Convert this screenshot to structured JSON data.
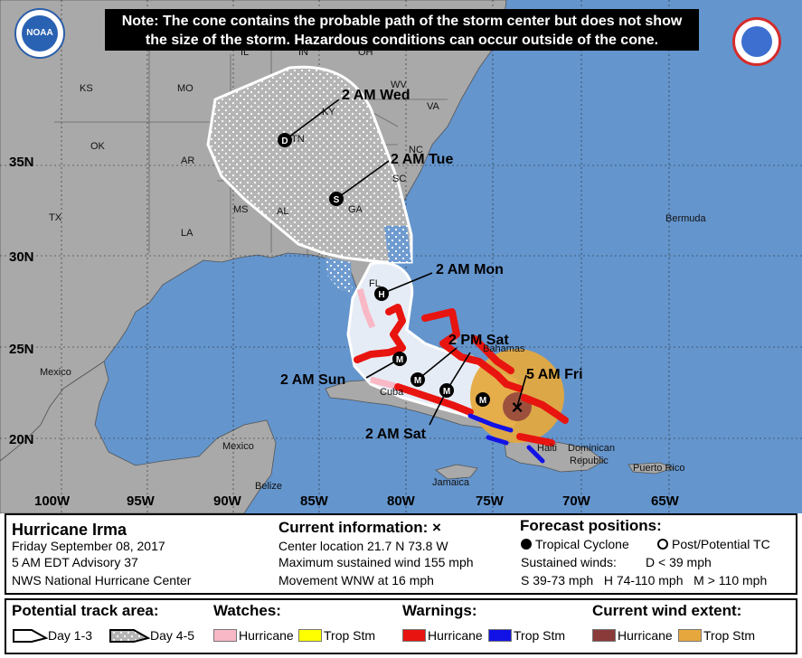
{
  "note": {
    "line1": "Note: The cone contains the probable path of the storm center but does not show",
    "line2": "the size of the storm. Hazardous conditions can occur outside of the cone."
  },
  "logos": {
    "noaa": "NOAA",
    "nws": "NATIONAL WEATHER SERVICE"
  },
  "map": {
    "states": [
      "KS",
      "MO",
      "IL",
      "IN",
      "OH",
      "WV",
      "VA",
      "KY",
      "OK",
      "AR",
      "TN",
      "NC",
      "SC",
      "TX",
      "LA",
      "MS",
      "AL",
      "GA",
      "FL"
    ],
    "places": [
      "Bermuda",
      "Mexico",
      "Mexico",
      "Belize",
      "Cuba",
      "Bahamas",
      "Jamaica",
      "Haiti",
      "Dominican",
      "Republic",
      "Puerto Rico"
    ],
    "latitudes": [
      "35N",
      "30N",
      "25N",
      "20N"
    ],
    "longitudes": [
      "100W",
      "95W",
      "90W",
      "85W",
      "80W",
      "75W",
      "70W",
      "65W"
    ],
    "forecast_labels": [
      "2 AM Wed",
      "2 AM Tue",
      "2 AM Mon",
      "2 PM Sat",
      "5 AM Fri",
      "2 AM Sun",
      "2 AM Sat"
    ],
    "forecast_markers": [
      "D",
      "S",
      "H",
      "M",
      "M",
      "M",
      "M"
    ],
    "center_marker": "×"
  },
  "storm": {
    "name": "Hurricane Irma",
    "date": "Friday September 08, 2017",
    "advisory": "5 AM EDT Advisory 37",
    "center": "NWS National Hurricane Center"
  },
  "current": {
    "heading": "Current information: ×",
    "location": "Center location 21.7 N 73.8 W",
    "winds": "Maximum sustained wind 155 mph",
    "movement": "Movement WNW at 16 mph"
  },
  "forecast": {
    "heading": "Forecast positions:",
    "tropical": "Tropical Cyclone",
    "post": "Post/Potential TC",
    "sustained": "Sustained winds:",
    "d": "D < 39 mph",
    "categories": "S 39-73 mph   H 74-110 mph   M > 110 mph"
  },
  "legend": {
    "track_heading": "Potential track area:",
    "day13": "Day 1-3",
    "day45": "Day 4-5",
    "watches_heading": "Watches:",
    "watch_hurricane": "Hurricane",
    "watch_trop": "Trop Stm",
    "warnings_heading": "Warnings:",
    "warn_hurricane": "Hurricane",
    "warn_trop": "Trop Stm",
    "wind_heading": "Current wind extent:",
    "wind_hurricane": "Hurricane",
    "wind_trop": "Trop Stm"
  },
  "colors": {
    "ocean": "#6495cd",
    "land": "#a9a9a9",
    "hurricane_warning": "#e8140f",
    "trop_warning": "#1212e6",
    "hurricane_watch": "#f9b8c6",
    "trop_watch": "#ffff00",
    "hurricane_wind": "#8b3a3a",
    "trop_wind": "#e6a83c"
  }
}
